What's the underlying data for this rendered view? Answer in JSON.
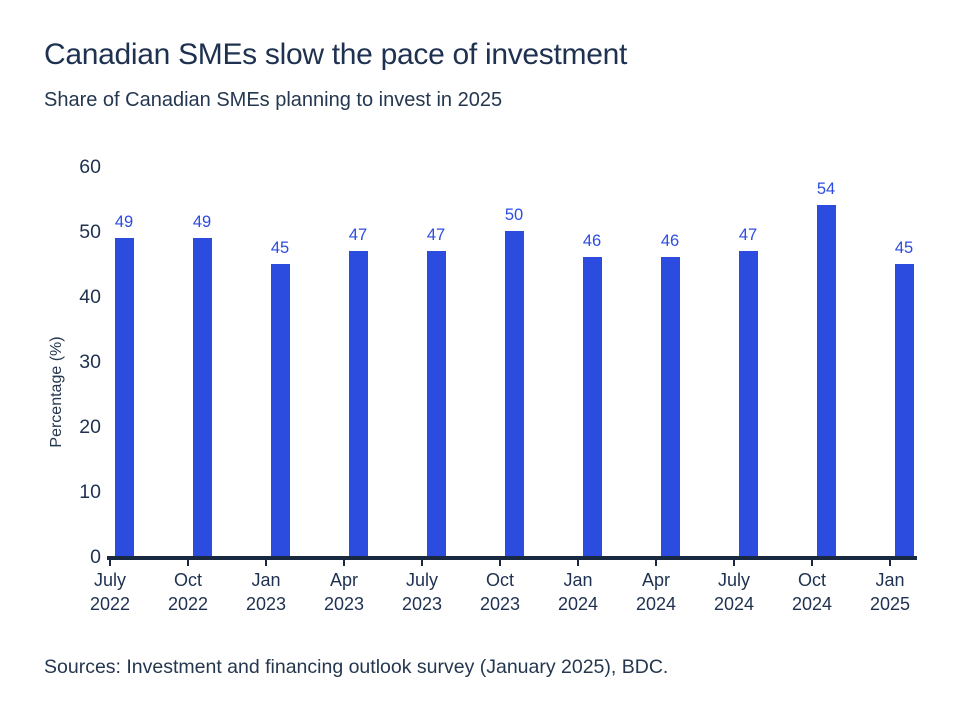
{
  "header": {
    "title": "Canadian SMEs slow the pace of investment",
    "subtitle": "Share of Canadian SMEs planning to invest in 2025"
  },
  "chart_data": {
    "type": "bar",
    "title": "Canadian SMEs slow the pace of investment",
    "subtitle": "Share of Canadian SMEs planning to invest in 2025",
    "categories": [
      {
        "month": "July",
        "year": "2022"
      },
      {
        "month": "Oct",
        "year": "2022"
      },
      {
        "month": "Jan",
        "year": "2023"
      },
      {
        "month": "Apr",
        "year": "2023"
      },
      {
        "month": "July",
        "year": "2023"
      },
      {
        "month": "Oct",
        "year": "2023"
      },
      {
        "month": "Jan",
        "year": "2024"
      },
      {
        "month": "Apr",
        "year": "2024"
      },
      {
        "month": "July",
        "year": "2024"
      },
      {
        "month": "Oct",
        "year": "2024"
      },
      {
        "month": "Jan",
        "year": "2025"
      }
    ],
    "values": [
      49,
      49,
      45,
      47,
      47,
      50,
      46,
      46,
      47,
      54,
      45
    ],
    "data_labels": true,
    "xlabel": "",
    "ylabel": "Percentage (%)",
    "yticks": [
      0,
      10,
      20,
      30,
      40,
      50,
      60
    ],
    "ylim": [
      0,
      60
    ],
    "grid": false,
    "legend": "none",
    "bar_color": "#2c4ce0",
    "value_label_color": "#2c4ce0",
    "axis_color": "#1a2942",
    "text_color": "#1e3150"
  },
  "footer": {
    "sources": "Sources: Investment and financing outlook survey (January 2025), BDC."
  }
}
